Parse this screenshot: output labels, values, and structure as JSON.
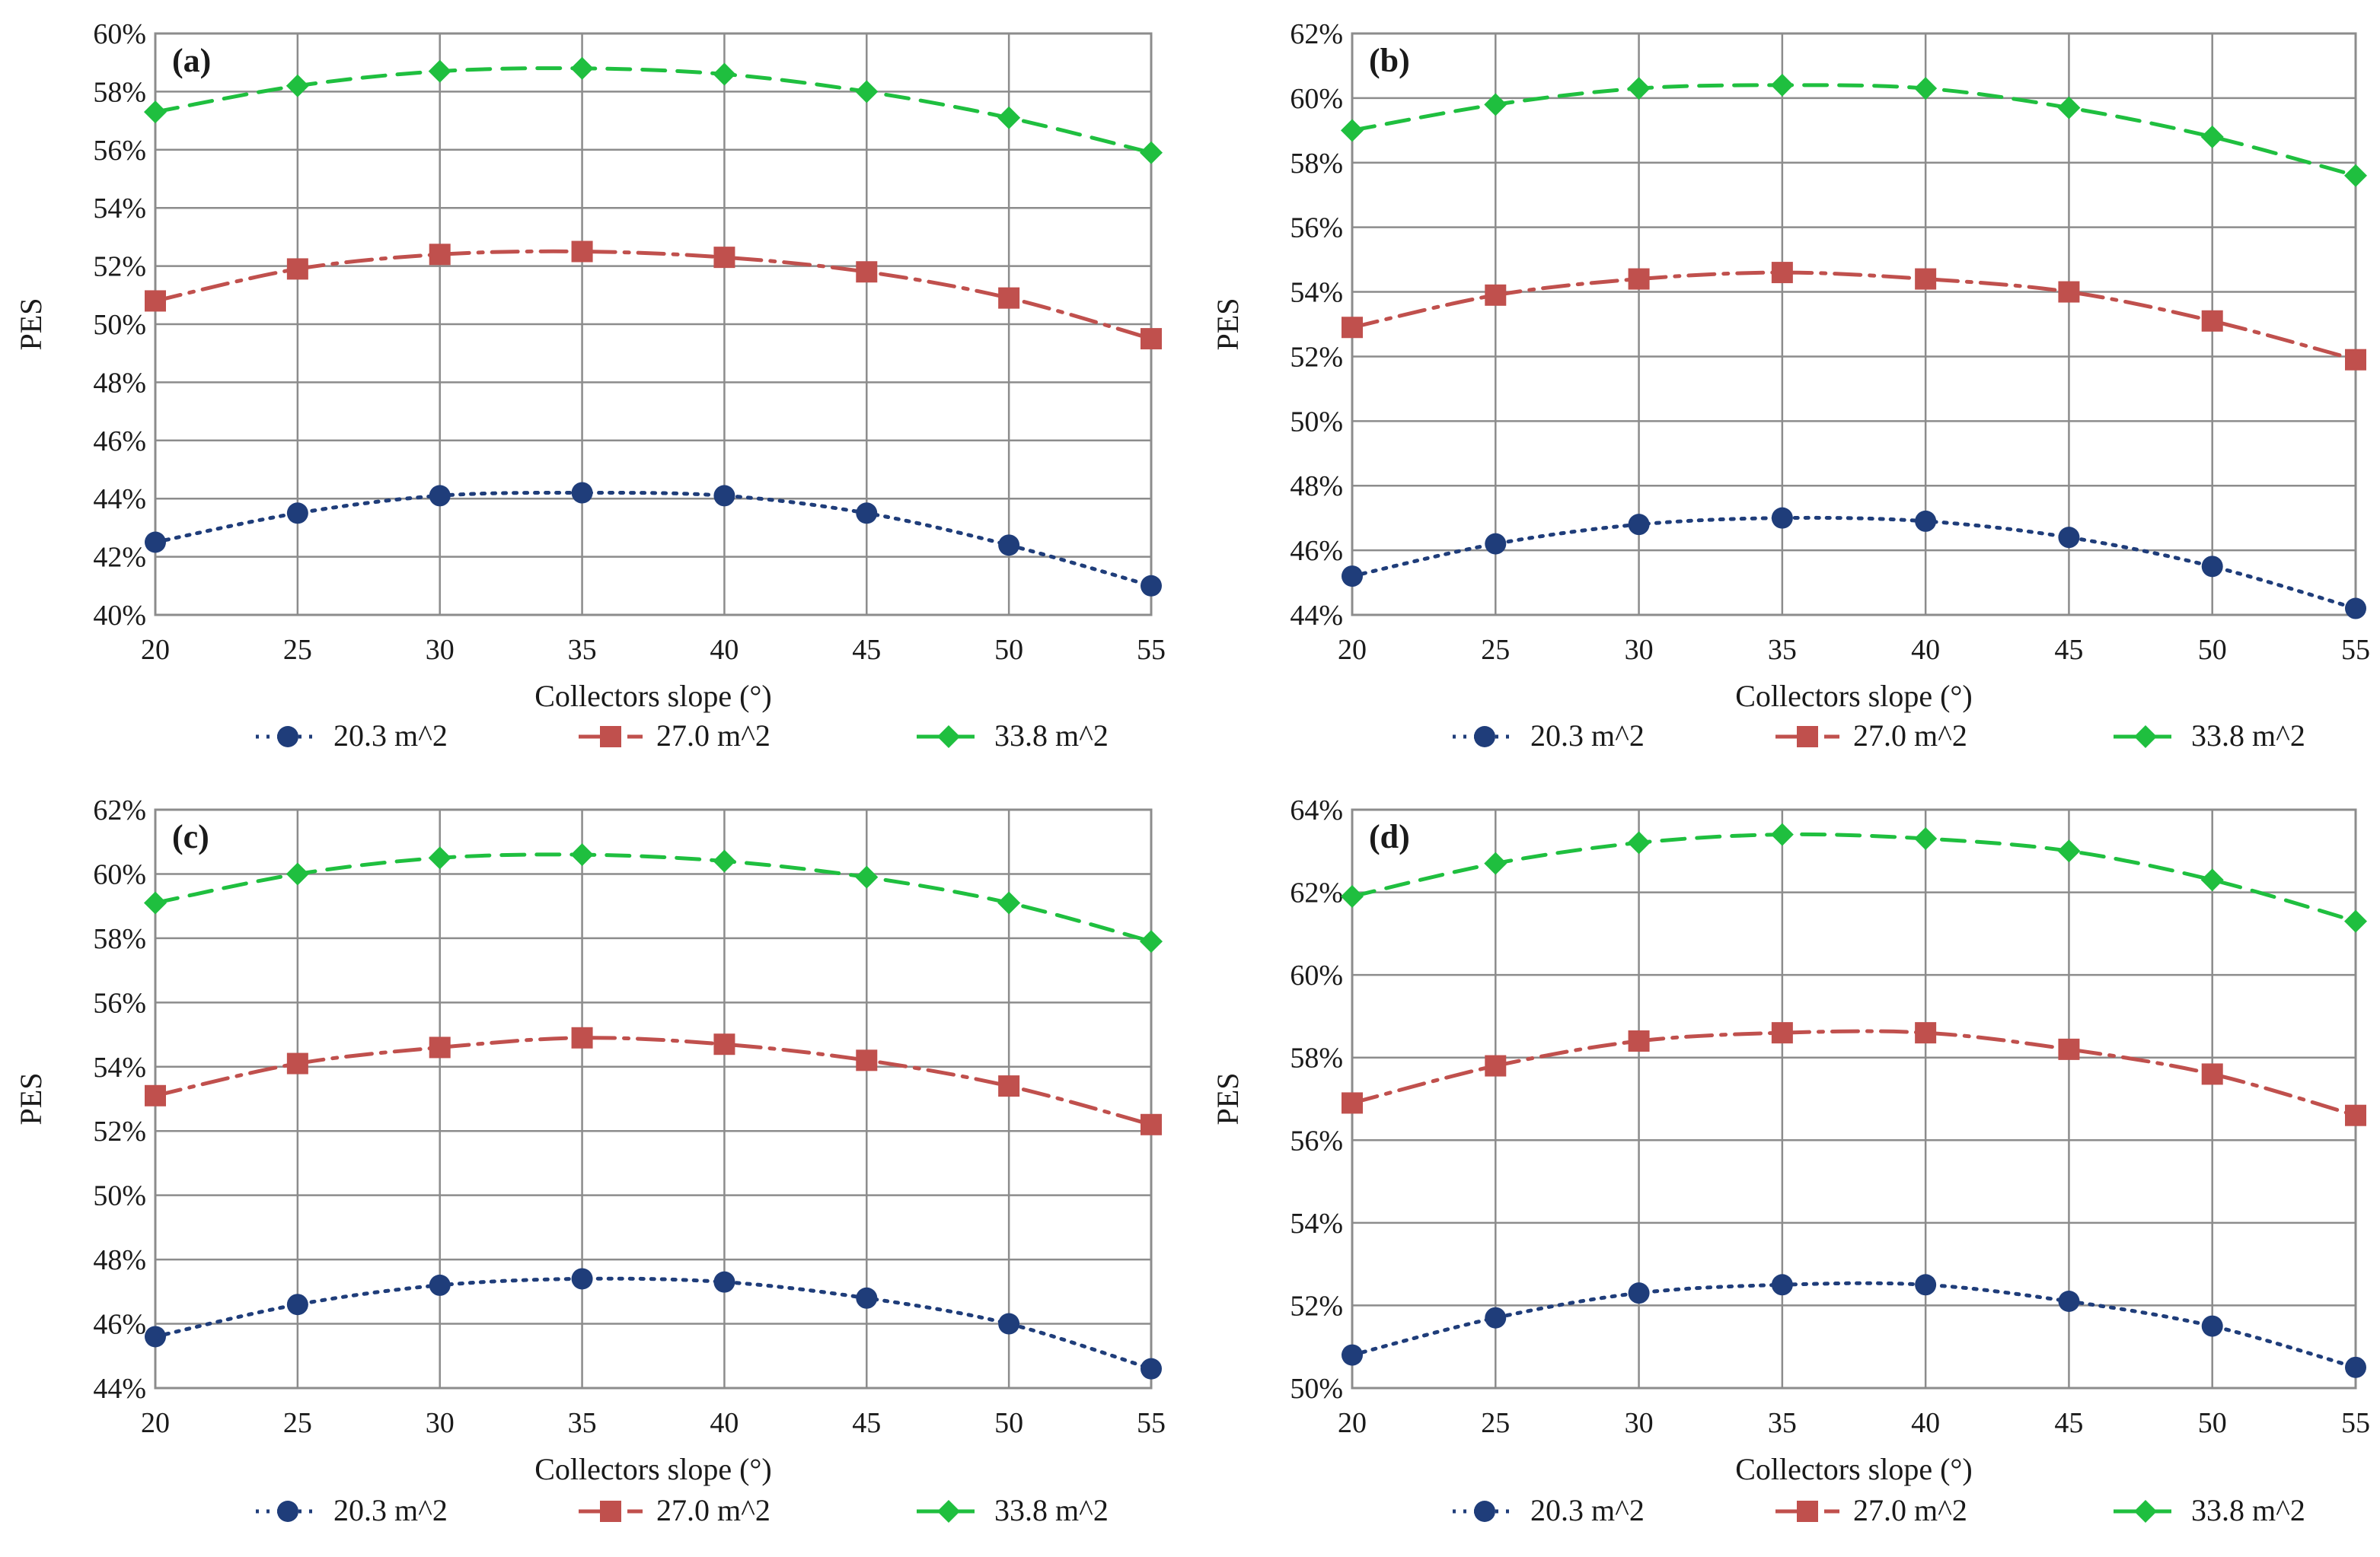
{
  "chart_data": [
    {
      "type": "line",
      "panel_label": "(a)",
      "title": "",
      "xlabel": "Collectors slope  (°)",
      "ylabel": "PES",
      "x": [
        20,
        25,
        30,
        35,
        40,
        45,
        50,
        55
      ],
      "x_tick_labels": [
        "20",
        "25",
        "30",
        "35",
        "40",
        "45",
        "50",
        "55"
      ],
      "ylim": [
        40,
        60
      ],
      "y_tick_labels": [
        "40%",
        "42%",
        "44%",
        "46%",
        "48%",
        "50%",
        "52%",
        "54%",
        "56%",
        "58%",
        "60%"
      ],
      "grid": true,
      "legend_position": "bottom",
      "series": [
        {
          "name": "20.3 m^2",
          "values": [
            42.5,
            43.5,
            44.1,
            44.2,
            44.1,
            43.5,
            42.4,
            41.0
          ]
        },
        {
          "name": "27.0 m^2",
          "values": [
            50.8,
            51.9,
            52.4,
            52.5,
            52.3,
            51.8,
            50.9,
            49.5
          ]
        },
        {
          "name": "33.8 m^2",
          "values": [
            57.3,
            58.2,
            58.7,
            58.8,
            58.6,
            58.0,
            57.1,
            55.9
          ]
        }
      ]
    },
    {
      "type": "line",
      "panel_label": "(b)",
      "title": "",
      "xlabel": "Collectors slope  (°)",
      "ylabel": "PES",
      "x": [
        20,
        25,
        30,
        35,
        40,
        45,
        50,
        55
      ],
      "x_tick_labels": [
        "20",
        "25",
        "30",
        "35",
        "40",
        "45",
        "50",
        "55"
      ],
      "ylim": [
        44,
        62
      ],
      "y_tick_labels": [
        "44%",
        "46%",
        "48%",
        "50%",
        "52%",
        "54%",
        "56%",
        "58%",
        "60%",
        "62%"
      ],
      "grid": true,
      "legend_position": "bottom",
      "series": [
        {
          "name": "20.3 m^2",
          "values": [
            45.2,
            46.2,
            46.8,
            47.0,
            46.9,
            46.4,
            45.5,
            44.2
          ]
        },
        {
          "name": "27.0 m^2",
          "values": [
            52.9,
            53.9,
            54.4,
            54.6,
            54.4,
            54.0,
            53.1,
            51.9
          ]
        },
        {
          "name": "33.8 m^2",
          "values": [
            59.0,
            59.8,
            60.3,
            60.4,
            60.3,
            59.7,
            58.8,
            57.6
          ]
        }
      ]
    },
    {
      "type": "line",
      "panel_label": "(c)",
      "title": "",
      "xlabel": "Collectors slope  (°)",
      "ylabel": "PES",
      "x": [
        20,
        25,
        30,
        35,
        40,
        45,
        50,
        55
      ],
      "x_tick_labels": [
        "20",
        "25",
        "30",
        "35",
        "40",
        "45",
        "50",
        "55"
      ],
      "ylim": [
        44,
        62
      ],
      "y_tick_labels": [
        "44%",
        "46%",
        "48%",
        "50%",
        "52%",
        "54%",
        "56%",
        "58%",
        "60%",
        "62%"
      ],
      "grid": true,
      "legend_position": "bottom",
      "series": [
        {
          "name": "20.3 m^2",
          "values": [
            45.6,
            46.6,
            47.2,
            47.4,
            47.3,
            46.8,
            46.0,
            44.6
          ]
        },
        {
          "name": "27.0 m^2",
          "values": [
            53.1,
            54.1,
            54.6,
            54.9,
            54.7,
            54.2,
            53.4,
            52.2
          ]
        },
        {
          "name": "33.8 m^2",
          "values": [
            59.1,
            60.0,
            60.5,
            60.6,
            60.4,
            59.9,
            59.1,
            57.9
          ]
        }
      ]
    },
    {
      "type": "line",
      "panel_label": "(d)",
      "title": "",
      "xlabel": "Collectors slope  (°)",
      "ylabel": "PES",
      "x": [
        20,
        25,
        30,
        35,
        40,
        45,
        50,
        55
      ],
      "x_tick_labels": [
        "20",
        "25",
        "30",
        "35",
        "40",
        "45",
        "50",
        "55"
      ],
      "ylim": [
        50,
        64
      ],
      "y_tick_labels": [
        "50%",
        "52%",
        "54%",
        "56%",
        "58%",
        "60%",
        "62%",
        "64%"
      ],
      "grid": true,
      "legend_position": "bottom",
      "series": [
        {
          "name": "20.3 m^2",
          "values": [
            50.8,
            51.7,
            52.3,
            52.5,
            52.5,
            52.1,
            51.5,
            50.5
          ]
        },
        {
          "name": "27.0 m^2",
          "values": [
            56.9,
            57.8,
            58.4,
            58.6,
            58.6,
            58.2,
            57.6,
            56.6
          ]
        },
        {
          "name": "33.8 m^2",
          "values": [
            61.9,
            62.7,
            63.2,
            63.4,
            63.3,
            63.0,
            62.3,
            61.3
          ]
        }
      ]
    }
  ],
  "style": {
    "series_colors": [
      "#1f3d7a",
      "#c0504d",
      "#1fbf3f"
    ],
    "series_markers": [
      "circle",
      "square",
      "diamond"
    ],
    "series_dash": [
      "dotted",
      "dashdot",
      "dashed"
    ],
    "grid_color": "#8c8c8c",
    "frame_color": "#8c8c8c"
  }
}
